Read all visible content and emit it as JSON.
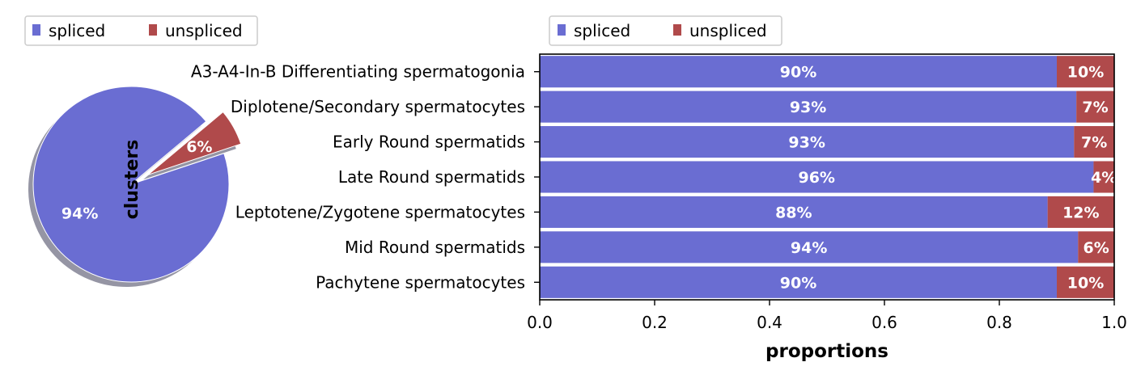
{
  "colors": {
    "spliced": "#6a6dd2",
    "unspliced": "#b04a4b",
    "shadow": "#8a8a9a"
  },
  "chart_data": [
    {
      "type": "pie",
      "ylabel": "clusters",
      "legend": {
        "placement": "top-left",
        "entries": [
          "spliced",
          "unspliced"
        ]
      },
      "slices": [
        {
          "name": "spliced",
          "value": 94,
          "label": "94%"
        },
        {
          "name": "unspliced",
          "value": 6,
          "label": "6%",
          "exploded": true
        }
      ]
    },
    {
      "type": "bar",
      "orientation": "horizontal",
      "stacked": true,
      "xlabel": "proportions",
      "xlim": [
        0.0,
        1.0
      ],
      "xticks": [
        "0.0",
        "0.2",
        "0.4",
        "0.6",
        "0.8",
        "1.0"
      ],
      "legend": {
        "placement": "top-left",
        "entries": [
          "spliced",
          "unspliced"
        ]
      },
      "categories": [
        "A3-A4-In-B Differentiating spermatogonia",
        "Diplotene/Secondary spermatocytes",
        "Early Round spermatids",
        "Late Round spermatids",
        "Leptotene/Zygotene spermatocytes",
        "Mid Round spermatids",
        "Pachytene spermatocytes"
      ],
      "series": [
        {
          "name": "spliced",
          "values": [
            0.9,
            0.934,
            0.93,
            0.964,
            0.884,
            0.937,
            0.9
          ],
          "labels": [
            "90%",
            "93%",
            "93%",
            "96%",
            "88%",
            "94%",
            "90%"
          ]
        },
        {
          "name": "unspliced",
          "values": [
            0.1,
            0.066,
            0.07,
            0.036,
            0.116,
            0.063,
            0.1
          ],
          "labels": [
            "10%",
            "7%",
            "7%",
            "4%",
            "12%",
            "6%",
            "10%"
          ]
        }
      ]
    }
  ]
}
